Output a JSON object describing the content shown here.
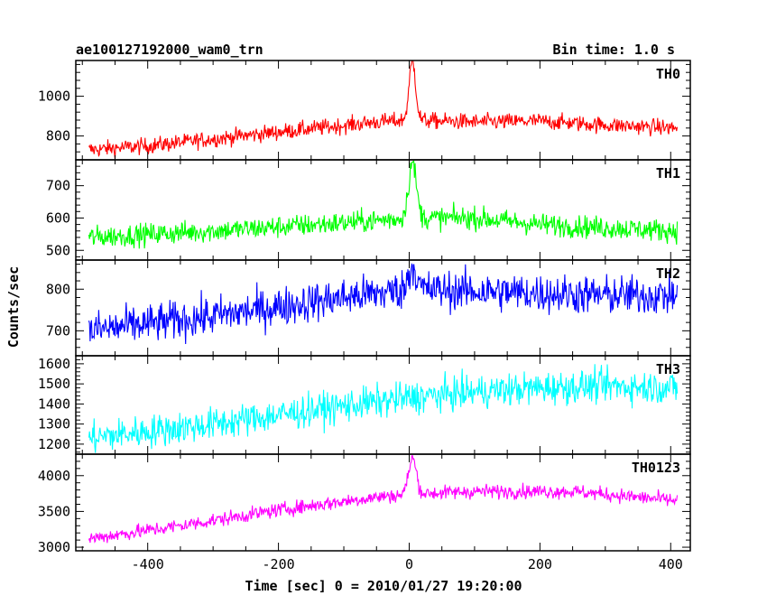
{
  "chart_data": {
    "type": "line",
    "title": "ae100127192000_wam0_trn",
    "bin_time_label": "Bin time: 1.0 s",
    "xlabel": "Time [sec] 0 = 2010/01/27 19:20:00",
    "ylabel": "Counts/sec",
    "xlim": [
      -510,
      430
    ],
    "xticks": [
      -400,
      -200,
      0,
      200,
      400
    ],
    "x_range": [
      -490,
      410
    ],
    "grid": false,
    "panels": [
      {
        "name": "TH0",
        "color": "#ff0000",
        "ylim": [
          680,
          1180
        ],
        "yticks": [
          800,
          1000
        ],
        "baseline": [
          [
            -490,
            730
          ],
          [
            -400,
            750
          ],
          [
            -200,
            820
          ],
          [
            -50,
            870
          ],
          [
            0,
            880
          ],
          [
            100,
            870
          ],
          [
            200,
            875
          ],
          [
            300,
            855
          ],
          [
            410,
            840
          ]
        ],
        "noise": 45,
        "spike": {
          "x": 5,
          "peak": 1175,
          "width": 5
        }
      },
      {
        "name": "TH1",
        "color": "#00ff00",
        "ylim": [
          470,
          780
        ],
        "yticks": [
          500,
          600,
          700
        ],
        "baseline": [
          [
            -490,
            540
          ],
          [
            -300,
            560
          ],
          [
            -100,
            585
          ],
          [
            0,
            600
          ],
          [
            100,
            600
          ],
          [
            200,
            580
          ],
          [
            300,
            570
          ],
          [
            410,
            560
          ]
        ],
        "noise": 38,
        "spike": {
          "x": 5,
          "peak": 770,
          "width": 6
        }
      },
      {
        "name": "TH2",
        "color": "#0000ff",
        "ylim": [
          640,
          870
        ],
        "yticks": [
          700,
          800
        ],
        "baseline": [
          [
            -490,
            700
          ],
          [
            -300,
            735
          ],
          [
            -100,
            780
          ],
          [
            0,
            800
          ],
          [
            100,
            795
          ],
          [
            200,
            790
          ],
          [
            300,
            785
          ],
          [
            410,
            785
          ]
        ],
        "noise": 52,
        "spike": {
          "x": 5,
          "peak": 855,
          "width": 6
        }
      },
      {
        "name": "TH3",
        "color": "#00ffff",
        "ylim": [
          1150,
          1640
        ],
        "yticks": [
          1200,
          1300,
          1400,
          1500,
          1600
        ],
        "baseline": [
          [
            -490,
            1230
          ],
          [
            -300,
            1300
          ],
          [
            -100,
            1390
          ],
          [
            0,
            1430
          ],
          [
            100,
            1460
          ],
          [
            200,
            1480
          ],
          [
            300,
            1490
          ],
          [
            410,
            1480
          ]
        ],
        "noise": 90
      },
      {
        "name": "TH0123",
        "color": "#ff00ff",
        "ylim": [
          2950,
          4300
        ],
        "yticks": [
          3000,
          3500,
          4000
        ],
        "baseline": [
          [
            -490,
            3120
          ],
          [
            -350,
            3300
          ],
          [
            -200,
            3520
          ],
          [
            -50,
            3700
          ],
          [
            0,
            3740
          ],
          [
            100,
            3780
          ],
          [
            250,
            3780
          ],
          [
            410,
            3650
          ]
        ],
        "noise": 110,
        "spike": {
          "x": 5,
          "peak": 4240,
          "width": 6
        }
      }
    ]
  }
}
